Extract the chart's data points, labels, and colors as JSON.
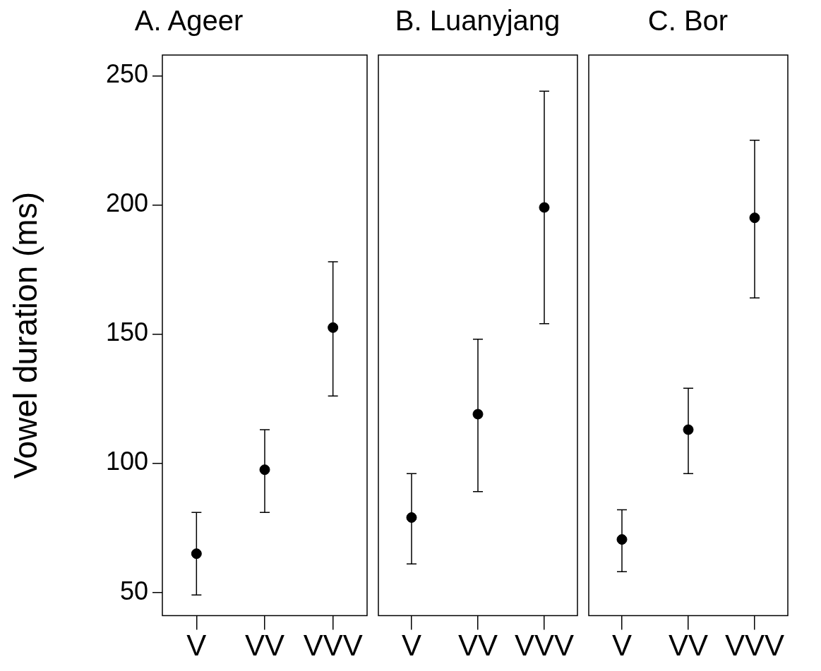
{
  "chart_data": [
    {
      "type": "scatter",
      "title": "A. Ageer",
      "ylabel": "Vowel duration (ms)",
      "categories": [
        "V",
        "VV",
        "VVV"
      ],
      "marker": "circle",
      "ylim": [
        41,
        258
      ],
      "yticks": [
        50,
        100,
        150,
        200,
        250
      ],
      "series": [
        {
          "color": "#000000",
          "values": [
            65,
            97.5,
            152.5
          ],
          "errors": [
            [
              49,
              81
            ],
            [
              81,
              113
            ],
            [
              126,
              178
            ]
          ]
        }
      ]
    },
    {
      "type": "scatter",
      "title": "B. Luanyjang",
      "categories": [
        "V",
        "VV",
        "VVV"
      ],
      "marker": "circle",
      "ylim": [
        41,
        258
      ],
      "yticks": [
        50,
        100,
        150,
        200,
        250
      ],
      "tick_labels": "x",
      "series": [
        {
          "color": "#000000",
          "values": [
            79,
            119,
            199
          ],
          "errors": [
            [
              61,
              96
            ],
            [
              89,
              148
            ],
            [
              154,
              244
            ]
          ]
        }
      ]
    },
    {
      "type": "scatter",
      "title": "C. Bor",
      "categories": [
        "V",
        "VV",
        "VVV"
      ],
      "marker": "circle",
      "ylim": [
        41,
        258
      ],
      "yticks": [
        50,
        100,
        150,
        200,
        250
      ],
      "tick_labels": "x",
      "series": [
        {
          "color": "#000000",
          "values": [
            70.5,
            113,
            195
          ],
          "errors": [
            [
              58,
              82
            ],
            [
              96,
              129
            ],
            [
              164,
              225
            ]
          ]
        }
      ]
    }
  ]
}
